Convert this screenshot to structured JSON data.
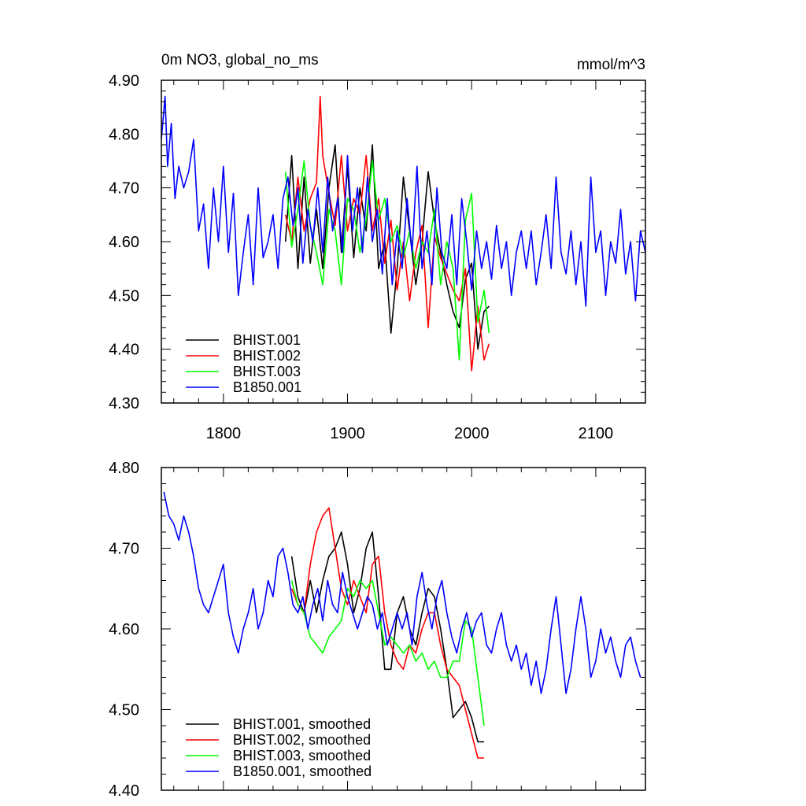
{
  "chart_data": [
    {
      "type": "line",
      "title_left": "0m NO3, global_no_ms",
      "title_right": "mmol/m^3",
      "xlim": [
        1750,
        2140
      ],
      "ylim": [
        4.3,
        4.9
      ],
      "xticks": [
        1800,
        1900,
        2000,
        2100
      ],
      "xtick_labels": [
        "1800",
        "1900",
        "2000",
        "2100"
      ],
      "yticks": [
        4.3,
        4.4,
        4.5,
        4.6,
        4.7,
        4.8,
        4.9
      ],
      "ytick_labels": [
        "4.30",
        "4.40",
        "4.50",
        "4.60",
        "4.70",
        "4.80",
        "4.90"
      ],
      "legend_position": "bottom-left",
      "series": [
        {
          "name": "BHIST.001",
          "color": "#000000",
          "x": [
            1850,
            1855,
            1860,
            1865,
            1870,
            1875,
            1880,
            1885,
            1890,
            1895,
            1900,
            1905,
            1910,
            1915,
            1920,
            1925,
            1930,
            1935,
            1940,
            1945,
            1950,
            1955,
            1960,
            1965,
            1970,
            1975,
            1980,
            1985,
            1990,
            1995,
            2000,
            2005,
            2010,
            2014
          ],
          "y": [
            4.6,
            4.76,
            4.55,
            4.72,
            4.56,
            4.66,
            4.55,
            4.7,
            4.78,
            4.58,
            4.74,
            4.57,
            4.7,
            4.62,
            4.78,
            4.55,
            4.6,
            4.43,
            4.55,
            4.72,
            4.62,
            4.52,
            4.6,
            4.73,
            4.64,
            4.58,
            4.52,
            4.47,
            4.44,
            4.53,
            4.56,
            4.4,
            4.47,
            4.48
          ]
        },
        {
          "name": "BHIST.002",
          "color": "#ff0000",
          "x": [
            1850,
            1855,
            1860,
            1865,
            1870,
            1875,
            1878,
            1880,
            1885,
            1890,
            1895,
            1900,
            1905,
            1910,
            1915,
            1920,
            1925,
            1930,
            1935,
            1940,
            1945,
            1950,
            1955,
            1960,
            1965,
            1970,
            1975,
            1980,
            1985,
            1990,
            1995,
            2000,
            2005,
            2010,
            2014
          ],
          "y": [
            4.65,
            4.6,
            4.72,
            4.62,
            4.68,
            4.71,
            4.87,
            4.76,
            4.69,
            4.63,
            4.76,
            4.62,
            4.68,
            4.65,
            4.76,
            4.62,
            4.68,
            4.56,
            4.64,
            4.51,
            4.6,
            4.49,
            4.58,
            4.63,
            4.44,
            4.61,
            4.57,
            4.54,
            4.51,
            4.49,
            4.55,
            4.36,
            4.48,
            4.38,
            4.41
          ]
        },
        {
          "name": "BHIST.003",
          "color": "#00ff00",
          "x": [
            1850,
            1855,
            1860,
            1865,
            1870,
            1875,
            1880,
            1885,
            1890,
            1895,
            1900,
            1905,
            1910,
            1915,
            1920,
            1925,
            1930,
            1935,
            1940,
            1945,
            1950,
            1955,
            1960,
            1965,
            1970,
            1975,
            1980,
            1985,
            1990,
            1995,
            2000,
            2005,
            2010,
            2014
          ],
          "y": [
            4.73,
            4.59,
            4.66,
            4.75,
            4.63,
            4.58,
            4.52,
            4.66,
            4.62,
            4.52,
            4.68,
            4.66,
            4.58,
            4.64,
            4.75,
            4.64,
            4.68,
            4.6,
            4.63,
            4.57,
            4.62,
            4.55,
            4.6,
            4.58,
            4.66,
            4.52,
            4.6,
            4.55,
            4.38,
            4.64,
            4.69,
            4.45,
            4.51,
            4.43
          ]
        },
        {
          "name": "B1850.001",
          "color": "#0000ff",
          "x": [
            1750,
            1753,
            1755,
            1758,
            1761,
            1764,
            1768,
            1772,
            1776,
            1780,
            1784,
            1788,
            1792,
            1796,
            1800,
            1804,
            1808,
            1812,
            1816,
            1820,
            1824,
            1828,
            1832,
            1836,
            1840,
            1844,
            1848,
            1852,
            1856,
            1860,
            1864,
            1868,
            1872,
            1876,
            1880,
            1884,
            1888,
            1892,
            1896,
            1900,
            1904,
            1908,
            1912,
            1916,
            1920,
            1924,
            1928,
            1932,
            1936,
            1940,
            1944,
            1948,
            1952,
            1956,
            1960,
            1964,
            1968,
            1972,
            1976,
            1980,
            1984,
            1988,
            1992,
            1996,
            2000,
            2004,
            2008,
            2012,
            2016,
            2020,
            2024,
            2028,
            2032,
            2036,
            2040,
            2044,
            2048,
            2052,
            2056,
            2060,
            2064,
            2068,
            2072,
            2076,
            2080,
            2084,
            2088,
            2092,
            2096,
            2100,
            2104,
            2108,
            2112,
            2116,
            2120,
            2124,
            2128,
            2132,
            2136,
            2140
          ],
          "y": [
            4.79,
            4.87,
            4.74,
            4.82,
            4.68,
            4.74,
            4.7,
            4.73,
            4.79,
            4.62,
            4.67,
            4.55,
            4.7,
            4.6,
            4.74,
            4.58,
            4.69,
            4.5,
            4.58,
            4.65,
            4.52,
            4.7,
            4.57,
            4.6,
            4.65,
            4.55,
            4.68,
            4.72,
            4.63,
            4.7,
            4.56,
            4.66,
            4.6,
            4.7,
            4.58,
            4.72,
            4.62,
            4.68,
            4.58,
            4.76,
            4.62,
            4.7,
            4.58,
            4.72,
            4.6,
            4.66,
            4.54,
            4.68,
            4.52,
            4.62,
            4.55,
            4.68,
            4.58,
            4.74,
            4.55,
            4.62,
            4.52,
            4.7,
            4.58,
            4.55,
            4.65,
            4.52,
            4.68,
            4.6,
            4.51,
            4.62,
            4.55,
            4.6,
            4.53,
            4.63,
            4.55,
            4.6,
            4.5,
            4.58,
            4.62,
            4.55,
            4.62,
            4.52,
            4.58,
            4.65,
            4.55,
            4.72,
            4.58,
            4.54,
            4.62,
            4.52,
            4.6,
            4.48,
            4.72,
            4.58,
            4.62,
            4.5,
            4.6,
            4.56,
            4.66,
            4.54,
            4.6,
            4.49,
            4.62,
            4.58
          ]
        }
      ]
    },
    {
      "type": "line",
      "xlim": [
        1750,
        2140
      ],
      "ylim": [
        4.4,
        4.8
      ],
      "yticks": [
        4.4,
        4.5,
        4.6,
        4.7,
        4.8
      ],
      "ytick_labels": [
        "4.40",
        "4.50",
        "4.60",
        "4.70",
        "4.80"
      ],
      "xticks": [
        1800,
        1900,
        2000,
        2100
      ],
      "legend_position": "bottom-left",
      "series": [
        {
          "name": "BHIST.001, smoothed",
          "color": "#000000",
          "x": [
            1855,
            1860,
            1865,
            1870,
            1875,
            1880,
            1885,
            1890,
            1895,
            1900,
            1905,
            1910,
            1915,
            1920,
            1925,
            1930,
            1935,
            1940,
            1945,
            1950,
            1955,
            1960,
            1965,
            1970,
            1975,
            1980,
            1985,
            1990,
            1995,
            2000,
            2005,
            2010
          ],
          "y": [
            4.69,
            4.64,
            4.62,
            4.66,
            4.62,
            4.66,
            4.69,
            4.7,
            4.72,
            4.68,
            4.62,
            4.65,
            4.7,
            4.72,
            4.64,
            4.55,
            4.55,
            4.62,
            4.64,
            4.6,
            4.58,
            4.62,
            4.65,
            4.64,
            4.6,
            4.55,
            4.49,
            4.5,
            4.51,
            4.49,
            4.46,
            4.46
          ]
        },
        {
          "name": "BHIST.002, smoothed",
          "color": "#ff0000",
          "x": [
            1855,
            1860,
            1865,
            1870,
            1875,
            1880,
            1885,
            1890,
            1895,
            1900,
            1905,
            1910,
            1915,
            1920,
            1925,
            1930,
            1935,
            1940,
            1945,
            1950,
            1955,
            1960,
            1965,
            1970,
            1975,
            1980,
            1985,
            1990,
            1995,
            2000,
            2005,
            2010
          ],
          "y": [
            4.65,
            4.63,
            4.62,
            4.68,
            4.72,
            4.74,
            4.75,
            4.7,
            4.65,
            4.63,
            4.66,
            4.64,
            4.62,
            4.68,
            4.69,
            4.62,
            4.58,
            4.56,
            4.55,
            4.58,
            4.57,
            4.6,
            4.62,
            4.62,
            4.58,
            4.55,
            4.54,
            4.53,
            4.5,
            4.47,
            4.44,
            4.44
          ]
        },
        {
          "name": "BHIST.003, smoothed",
          "color": "#00ff00",
          "x": [
            1855,
            1860,
            1865,
            1870,
            1875,
            1880,
            1885,
            1890,
            1895,
            1900,
            1905,
            1910,
            1915,
            1920,
            1925,
            1930,
            1935,
            1940,
            1945,
            1950,
            1955,
            1960,
            1965,
            1970,
            1975,
            1980,
            1985,
            1990,
            1995,
            2000,
            2005,
            2010
          ],
          "y": [
            4.66,
            4.63,
            4.62,
            4.59,
            4.58,
            4.57,
            4.59,
            4.6,
            4.61,
            4.65,
            4.64,
            4.66,
            4.65,
            4.66,
            4.62,
            4.58,
            4.59,
            4.58,
            4.57,
            4.58,
            4.56,
            4.57,
            4.55,
            4.56,
            4.54,
            4.54,
            4.56,
            4.56,
            4.61,
            4.6,
            4.54,
            4.48
          ]
        },
        {
          "name": "B1850.001, smoothed",
          "color": "#0000ff",
          "x": [
            1752,
            1756,
            1760,
            1764,
            1768,
            1772,
            1776,
            1780,
            1784,
            1788,
            1792,
            1796,
            1800,
            1804,
            1808,
            1812,
            1816,
            1820,
            1824,
            1828,
            1832,
            1836,
            1840,
            1844,
            1848,
            1852,
            1856,
            1860,
            1864,
            1868,
            1872,
            1876,
            1880,
            1884,
            1888,
            1892,
            1896,
            1900,
            1904,
            1908,
            1912,
            1916,
            1920,
            1924,
            1928,
            1932,
            1936,
            1940,
            1944,
            1948,
            1952,
            1956,
            1960,
            1964,
            1968,
            1972,
            1976,
            1980,
            1984,
            1988,
            1992,
            1996,
            2000,
            2004,
            2008,
            2012,
            2016,
            2020,
            2024,
            2028,
            2032,
            2036,
            2040,
            2044,
            2048,
            2052,
            2056,
            2060,
            2064,
            2068,
            2072,
            2076,
            2080,
            2084,
            2088,
            2092,
            2096,
            2100,
            2104,
            2108,
            2112,
            2116,
            2120,
            2124,
            2128,
            2132,
            2136
          ],
          "y": [
            4.77,
            4.74,
            4.73,
            4.71,
            4.74,
            4.72,
            4.69,
            4.65,
            4.63,
            4.62,
            4.64,
            4.66,
            4.68,
            4.62,
            4.59,
            4.57,
            4.6,
            4.62,
            4.65,
            4.6,
            4.62,
            4.66,
            4.64,
            4.69,
            4.7,
            4.67,
            4.63,
            4.62,
            4.64,
            4.6,
            4.63,
            4.65,
            4.61,
            4.66,
            4.63,
            4.62,
            4.67,
            4.64,
            4.62,
            4.6,
            4.62,
            4.64,
            4.63,
            4.6,
            4.62,
            4.58,
            4.6,
            4.62,
            4.6,
            4.62,
            4.58,
            4.64,
            4.67,
            4.63,
            4.6,
            4.64,
            4.66,
            4.62,
            4.59,
            4.57,
            4.6,
            4.62,
            4.59,
            4.61,
            4.62,
            4.58,
            4.57,
            4.6,
            4.62,
            4.58,
            4.56,
            4.58,
            4.55,
            4.57,
            4.53,
            4.56,
            4.52,
            4.55,
            4.6,
            4.64,
            4.58,
            4.52,
            4.55,
            4.6,
            4.64,
            4.6,
            4.54,
            4.56,
            4.6,
            4.57,
            4.59,
            4.56,
            4.54,
            4.58,
            4.59,
            4.56,
            4.54
          ]
        }
      ]
    }
  ]
}
